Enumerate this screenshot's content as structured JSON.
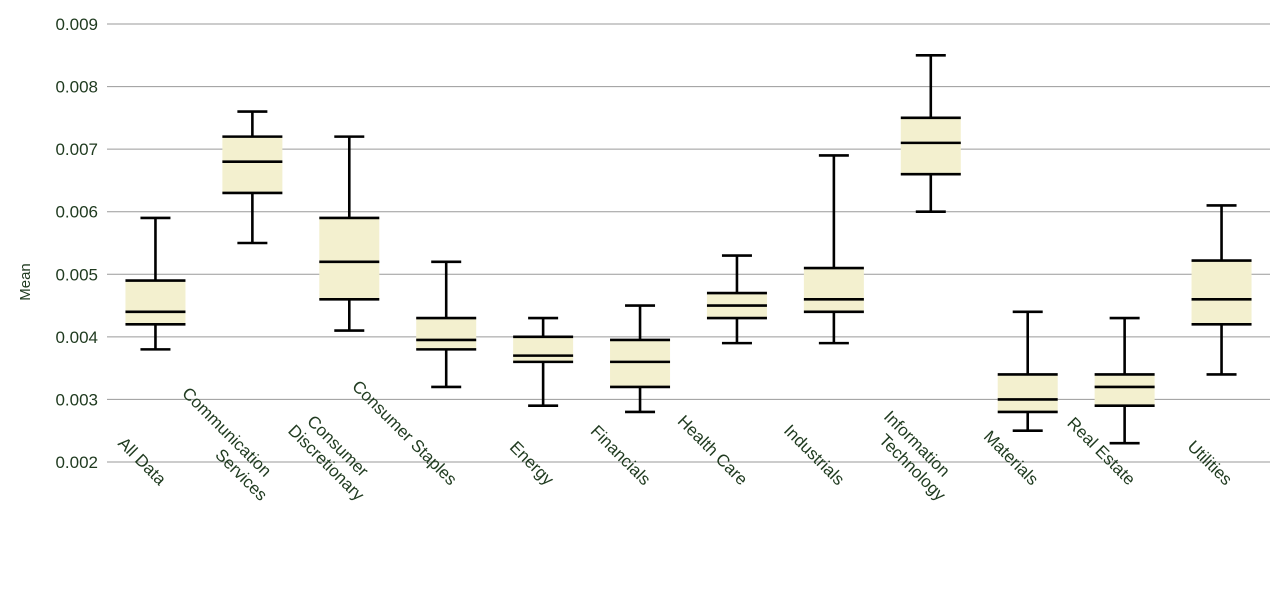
{
  "chart_data": {
    "type": "box",
    "ylabel": "Mean",
    "xlabel": "",
    "ylim": [
      0.002,
      0.009
    ],
    "yticks": [
      "0.002",
      "0.003",
      "0.004",
      "0.005",
      "0.006",
      "0.007",
      "0.008",
      "0.009"
    ],
    "grid": "horizontal",
    "colors": {
      "box_fill": "#f3f0cf",
      "stroke": "#000000",
      "grid": "#9a9a9a",
      "text": "#1f3a1f"
    },
    "categories": [
      {
        "label": "All Data",
        "min": 0.0038,
        "q1": 0.0042,
        "median": 0.0044,
        "q3": 0.0049,
        "max": 0.0059
      },
      {
        "label": "Communication Services",
        "min": 0.0055,
        "q1": 0.0063,
        "median": 0.0068,
        "q3": 0.0072,
        "max": 0.0076
      },
      {
        "label": "Consumer Discretionary",
        "min": 0.0041,
        "q1": 0.0046,
        "median": 0.0052,
        "q3": 0.0059,
        "max": 0.0072
      },
      {
        "label": "Consumer Staples",
        "min": 0.0032,
        "q1": 0.0038,
        "median": 0.00395,
        "q3": 0.0043,
        "max": 0.0052
      },
      {
        "label": "Energy",
        "min": 0.0029,
        "q1": 0.0036,
        "median": 0.0037,
        "q3": 0.004,
        "max": 0.0043
      },
      {
        "label": "Financials",
        "min": 0.0028,
        "q1": 0.0032,
        "median": 0.0036,
        "q3": 0.00395,
        "max": 0.0045
      },
      {
        "label": "Health Care",
        "min": 0.0039,
        "q1": 0.0043,
        "median": 0.0045,
        "q3": 0.0047,
        "max": 0.0053
      },
      {
        "label": "Industrials",
        "min": 0.0039,
        "q1": 0.0044,
        "median": 0.0046,
        "q3": 0.0051,
        "max": 0.0069
      },
      {
        "label": "Information Technology",
        "min": 0.006,
        "q1": 0.0066,
        "median": 0.0071,
        "q3": 0.0075,
        "max": 0.0085
      },
      {
        "label": "Materials",
        "min": 0.0025,
        "q1": 0.0028,
        "median": 0.003,
        "q3": 0.0034,
        "max": 0.0044
      },
      {
        "label": "Real Estate",
        "min": 0.0023,
        "q1": 0.0029,
        "median": 0.0032,
        "q3": 0.0034,
        "max": 0.0043
      },
      {
        "label": "Utilities",
        "min": 0.0034,
        "q1": 0.0042,
        "median": 0.0046,
        "q3": 0.00522,
        "max": 0.0061
      }
    ]
  }
}
